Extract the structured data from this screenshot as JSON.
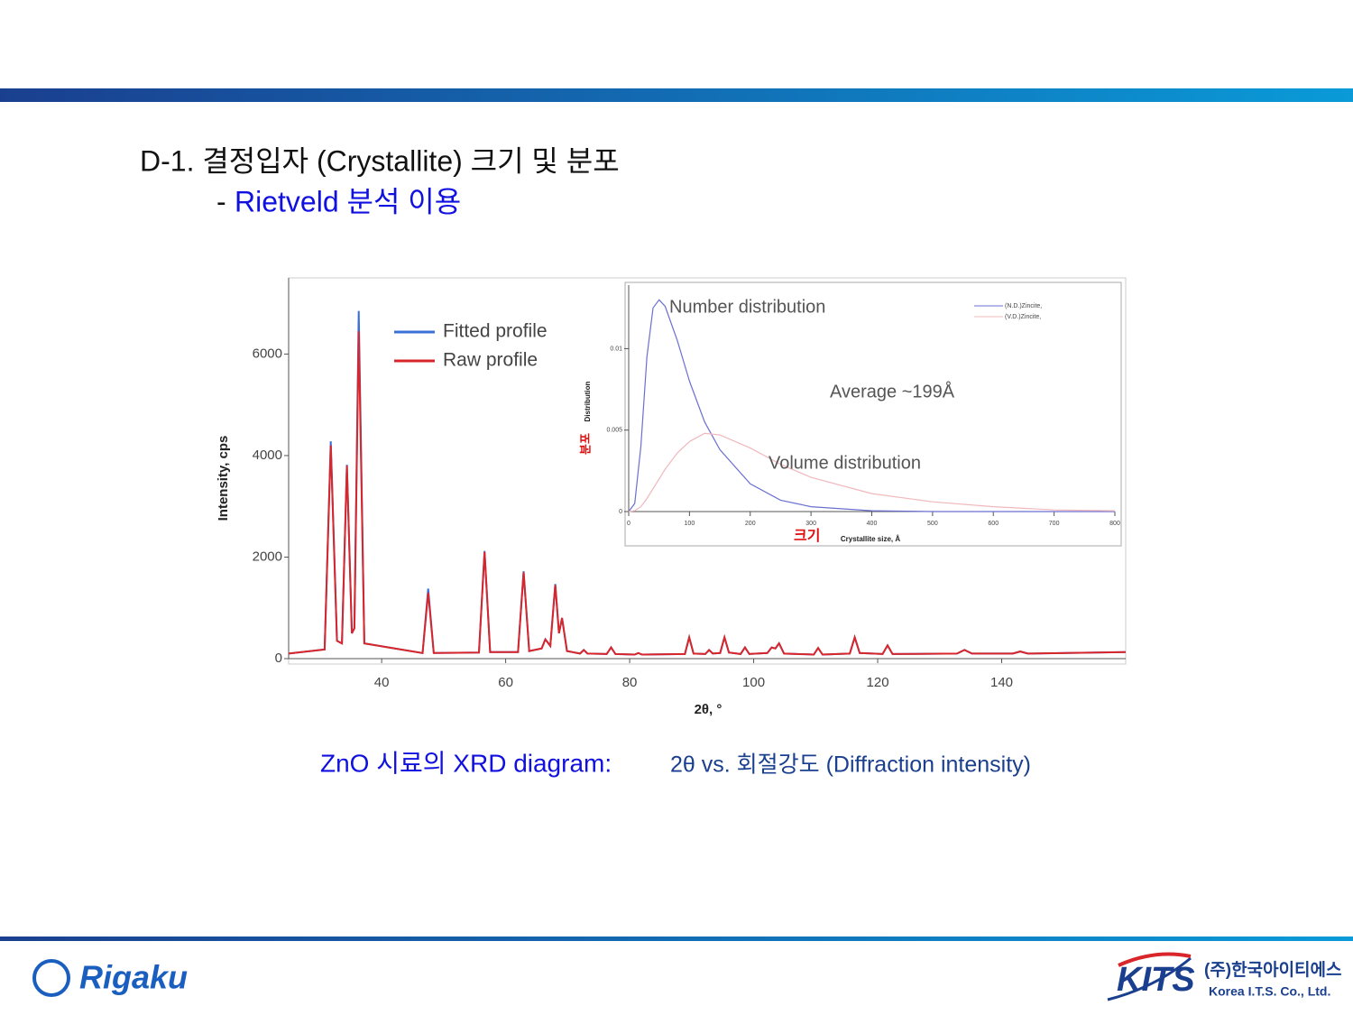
{
  "slide": {
    "title": "D-1. 결정입자 (Crystallite) 크기 및 분포",
    "subtitle_dash": "-",
    "subtitle": "Rietveld 분석 이용",
    "caption_main": "ZnO 시료의 XRD diagram:",
    "caption_detail": "2θ vs. 회절강도 (Diffraction intensity)",
    "footer_left": "Rigaku",
    "footer_right_logo": "KITS",
    "footer_right_name": "(주)한국아이티에스",
    "footer_right_sub": "Korea I.T.S. Co., Ltd."
  },
  "chart_data": [
    {
      "type": "line",
      "x_label": "2θ, °",
      "y_label": "Intensity, cps",
      "x": [
        25,
        30.8,
        31.8,
        32.8,
        33.6,
        34.4,
        35.2,
        35.6,
        36.3,
        37.2,
        46.6,
        47.5,
        48.4,
        55.7,
        56.6,
        57.5,
        62.0,
        62.9,
        63.8,
        65.8,
        66.4,
        67.2,
        68.0,
        68.6,
        69.1,
        69.9,
        72.0,
        72.6,
        73.2,
        76.3,
        77.0,
        77.7,
        80.8,
        81.4,
        82.0,
        88.9,
        89.6,
        90.3,
        92.2,
        92.8,
        93.4,
        94.6,
        95.3,
        96.0,
        97.9,
        98.6,
        99.3,
        102.2,
        102.9,
        103.5,
        104.1,
        104.9,
        109.7,
        110.4,
        111.1,
        115.5,
        116.3,
        117.1,
        120.8,
        121.6,
        122.4,
        132.8,
        134,
        135.2,
        141.8,
        143,
        144.2,
        160
      ],
      "series": [
        {
          "name": "Fitted profile",
          "color": "#3a6fd8",
          "values": [
            100,
            180,
            4280,
            350,
            300,
            3820,
            500,
            600,
            6850,
            300,
            110,
            1380,
            110,
            120,
            2120,
            130,
            130,
            1720,
            150,
            200,
            380,
            250,
            1470,
            500,
            800,
            150,
            100,
            170,
            100,
            90,
            220,
            90,
            80,
            110,
            80,
            90,
            420,
            100,
            90,
            170,
            100,
            110,
            420,
            120,
            90,
            220,
            90,
            110,
            220,
            200,
            300,
            100,
            80,
            210,
            80,
            100,
            420,
            110,
            90,
            260,
            90,
            100,
            170,
            100,
            100,
            140,
            100,
            130
          ]
        },
        {
          "name": "Raw profile",
          "color": "#d8262a",
          "values": [
            100,
            180,
            4200,
            350,
            300,
            3800,
            500,
            600,
            6450,
            300,
            110,
            1300,
            110,
            120,
            2100,
            130,
            130,
            1700,
            150,
            200,
            380,
            250,
            1450,
            500,
            800,
            150,
            100,
            170,
            100,
            90,
            220,
            90,
            80,
            110,
            80,
            90,
            420,
            100,
            90,
            170,
            100,
            110,
            420,
            120,
            90,
            220,
            90,
            110,
            220,
            200,
            300,
            100,
            80,
            210,
            80,
            100,
            420,
            110,
            90,
            260,
            90,
            100,
            170,
            100,
            100,
            140,
            100,
            130
          ]
        }
      ],
      "xlim": [
        25,
        160
      ],
      "xticks": [
        40,
        60,
        80,
        100,
        120,
        140
      ],
      "ylim": [
        0,
        7500
      ],
      "yticks": [
        0,
        2000,
        4000,
        6000
      ]
    },
    {
      "type": "line",
      "x_label": "Crystallite size, Å",
      "y_label": "Distribution",
      "x_note": "크기",
      "y_note": "분포",
      "annotations": [
        "Number distribution",
        "Average ~199Å",
        "Volume distribution"
      ],
      "x": [
        0,
        10,
        20,
        30,
        40,
        50,
        60,
        80,
        100,
        125,
        150,
        200,
        250,
        300,
        400,
        500,
        600,
        700,
        800
      ],
      "series": [
        {
          "name": "(N.D.)Zincite,",
          "color": "#6a6fd0",
          "values": [
            0,
            0.0005,
            0.004,
            0.0095,
            0.0125,
            0.013,
            0.0126,
            0.0105,
            0.008,
            0.0055,
            0.0038,
            0.0017,
            0.0007,
            0.0003,
            5e-05,
            0,
            0,
            0,
            0
          ]
        },
        {
          "name": "(V.D.)Zincite,",
          "color": "#f0b8bc",
          "values": [
            0,
            5e-05,
            0.0003,
            0.0008,
            0.0014,
            0.002,
            0.0026,
            0.0036,
            0.0043,
            0.0048,
            0.0047,
            0.0039,
            0.0029,
            0.0021,
            0.0011,
            0.0006,
            0.0003,
            0.0001,
            5e-05
          ]
        }
      ],
      "xlim": [
        0,
        800
      ],
      "xticks": [
        0,
        100,
        200,
        300,
        400,
        500,
        600,
        700,
        800
      ],
      "ylim": [
        0,
        0.0139
      ],
      "yticks": [
        0,
        0.005,
        0.01
      ]
    }
  ]
}
